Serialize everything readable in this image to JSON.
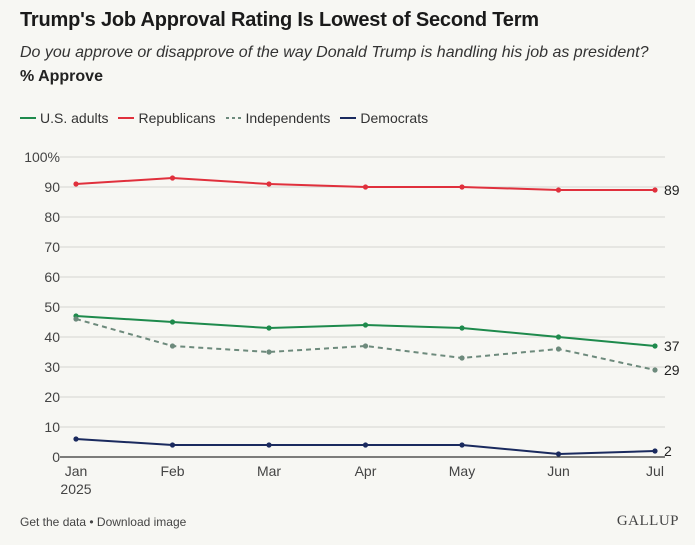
{
  "header": {
    "title": "Trump's Job Approval Rating Is Lowest of Second Term",
    "subtitle": "Do you approve or disapprove of the way Donald Trump is handling his job as president?",
    "measure": "% Approve"
  },
  "footer": {
    "get_data": "Get the data",
    "separator": " • ",
    "download": "Download image",
    "brand": "GALLUP"
  },
  "chart_data": {
    "type": "line",
    "categories": [
      "Jan",
      "Feb",
      "Mar",
      "Apr",
      "May",
      "Jun",
      "Jul"
    ],
    "category_sublabels": [
      "2025",
      "",
      "",
      "",
      "",
      "",
      ""
    ],
    "y_ticks": [
      "0",
      "10",
      "20",
      "30",
      "40",
      "50",
      "60",
      "70",
      "80",
      "90",
      "100%"
    ],
    "ylim": [
      0,
      100
    ],
    "grid": true,
    "legend_position": "top-left",
    "series": [
      {
        "name": "U.S. adults",
        "color": "#1e8a4c",
        "dashed": false,
        "values": [
          47,
          45,
          43,
          44,
          43,
          40,
          37
        ],
        "end_label": "37"
      },
      {
        "name": "Republicans",
        "color": "#e0303c",
        "dashed": false,
        "values": [
          91,
          93,
          91,
          90,
          90,
          89,
          89
        ],
        "end_label": "89"
      },
      {
        "name": "Independents",
        "color": "#6d8a7c",
        "dashed": true,
        "values": [
          46,
          37,
          35,
          37,
          33,
          36,
          29
        ],
        "end_label": "29"
      },
      {
        "name": "Democrats",
        "color": "#1a2a5e",
        "dashed": false,
        "values": [
          6,
          4,
          4,
          4,
          4,
          1,
          2
        ],
        "end_label": "2"
      }
    ]
  }
}
